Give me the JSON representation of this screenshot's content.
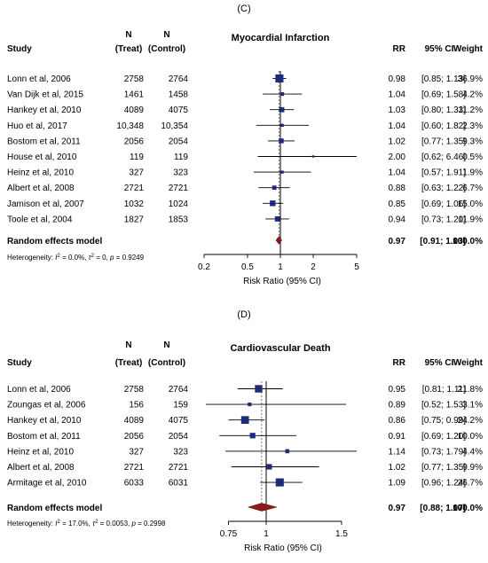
{
  "chart_data": [
    {
      "type": "forest",
      "panel_label": "(C)",
      "title": "Myocardial Infarction",
      "headers": {
        "study": "Study",
        "n_treat": [
          "N",
          "(Treat)"
        ],
        "n_control": [
          "N",
          "(Control)"
        ],
        "rr": "RR",
        "ci": "95% CI",
        "weight": "Weight"
      },
      "rows": [
        {
          "study": "Lonn et al, 2006",
          "n_treat": "2758",
          "n_control": "2764",
          "rr": 0.98,
          "lo": 0.85,
          "hi": 1.13,
          "rr_text": "0.98",
          "ci_text": "[0.85; 1.13]",
          "weight_text": "36.9%",
          "weight": 36.9
        },
        {
          "study": "Van Dijk et al, 2015",
          "n_treat": "1461",
          "n_control": "1458",
          "rr": 1.04,
          "lo": 0.69,
          "hi": 1.58,
          "rr_text": "1.04",
          "ci_text": "[0.69; 1.58]",
          "weight_text": "4.2%",
          "weight": 4.2
        },
        {
          "study": "Hankey et al, 2010",
          "n_treat": "4089",
          "n_control": "4075",
          "rr": 1.03,
          "lo": 0.8,
          "hi": 1.33,
          "rr_text": "1.03",
          "ci_text": "[0.80; 1.33]",
          "weight_text": "11.2%",
          "weight": 11.2
        },
        {
          "study": "Huo et al, 2017",
          "n_treat": "10,348",
          "n_control": "10,354",
          "rr": 1.04,
          "lo": 0.6,
          "hi": 1.82,
          "rr_text": "1.04",
          "ci_text": "[0.60; 1.82]",
          "weight_text": "2.3%",
          "weight": 2.3
        },
        {
          "study": "Bostom et al, 2011",
          "n_treat": "2056",
          "n_control": "2054",
          "rr": 1.02,
          "lo": 0.77,
          "hi": 1.35,
          "rr_text": "1.02",
          "ci_text": "[0.77; 1.35]",
          "weight_text": "9.3%",
          "weight": 9.3
        },
        {
          "study": "House et al, 2010",
          "n_treat": "119",
          "n_control": "119",
          "rr": 2.0,
          "lo": 0.62,
          "hi": 6.46,
          "rr_text": "2.00",
          "ci_text": "[0.62; 6.46]",
          "weight_text": "0.5%",
          "weight": 0.5
        },
        {
          "study": "Heinz et al, 2010",
          "n_treat": "327",
          "n_control": "323",
          "rr": 1.04,
          "lo": 0.57,
          "hi": 1.91,
          "rr_text": "1.04",
          "ci_text": "[0.57; 1.91]",
          "weight_text": "1.9%",
          "weight": 1.9
        },
        {
          "study": "Albert et al, 2008",
          "n_treat": "2721",
          "n_control": "2721",
          "rr": 0.88,
          "lo": 0.63,
          "hi": 1.22,
          "rr_text": "0.88",
          "ci_text": "[0.63; 1.22]",
          "weight_text": "6.7%",
          "weight": 6.7
        },
        {
          "study": "Jamison et al, 2007",
          "n_treat": "1032",
          "n_control": "1024",
          "rr": 0.85,
          "lo": 0.69,
          "hi": 1.06,
          "rr_text": "0.85",
          "ci_text": "[0.69; 1.06]",
          "weight_text": "15.0%",
          "weight": 15.0
        },
        {
          "study": "Toole et al, 2004",
          "n_treat": "1827",
          "n_control": "1853",
          "rr": 0.94,
          "lo": 0.73,
          "hi": 1.2,
          "rr_text": "0.94",
          "ci_text": "[0.73; 1.20]",
          "weight_text": "11.9%",
          "weight": 11.9
        }
      ],
      "summary": {
        "label": "Random effects model",
        "rr": 0.97,
        "lo": 0.91,
        "hi": 1.03,
        "rr_text": "0.97",
        "ci_text": "[0.91; 1.03]",
        "weight_text": "100.0%"
      },
      "heterogeneity": {
        "prefix": "Heterogeneity: ",
        "i2": "I",
        "i2_val": " = 0.0%, ",
        "tau2": "τ",
        "tau2_val": " = 0, ",
        "p": "p",
        "p_val": " = 0.9249"
      },
      "x_scale": "log",
      "xlim": [
        0.2,
        5
      ],
      "xticks": [
        0.2,
        0.5,
        1,
        2,
        5
      ],
      "xtick_labels": [
        "0.2",
        "0.5",
        "1",
        "2",
        "5"
      ],
      "xlabel": "Risk Ratio (95% CI)",
      "colors": {
        "square": "#1f2a78",
        "diamond": "#8b1a1a",
        "line": "#000000",
        "dotted": "#555555"
      }
    },
    {
      "type": "forest",
      "panel_label": "(D)",
      "title": "Cardiovascular Death",
      "headers": {
        "study": "Study",
        "n_treat": [
          "N",
          "(Treat)"
        ],
        "n_control": [
          "N",
          "(Control)"
        ],
        "rr": "RR",
        "ci": "95% CI",
        "weight": "Weight"
      },
      "rows": [
        {
          "study": "Lonn et al, 2006",
          "n_treat": "2758",
          "n_control": "2764",
          "rr": 0.95,
          "lo": 0.81,
          "hi": 1.11,
          "rr_text": "0.95",
          "ci_text": "[0.81; 1.11]",
          "weight_text": "21.8%",
          "weight": 21.8
        },
        {
          "study": "Zoungas et al, 2006",
          "n_treat": "156",
          "n_control": "159",
          "rr": 0.89,
          "lo": 0.52,
          "hi": 1.53,
          "rr_text": "0.89",
          "ci_text": "[0.52; 1.53]",
          "weight_text": "3.1%",
          "weight": 3.1
        },
        {
          "study": "Hankey et al, 2010",
          "n_treat": "4089",
          "n_control": "4075",
          "rr": 0.86,
          "lo": 0.75,
          "hi": 0.99,
          "rr_text": "0.86",
          "ci_text": "[0.75; 0.99]",
          "weight_text": "24.2%",
          "weight": 24.2
        },
        {
          "study": "Bostom et al, 2011",
          "n_treat": "2056",
          "n_control": "2054",
          "rr": 0.91,
          "lo": 0.69,
          "hi": 1.2,
          "rr_text": "0.91",
          "ci_text": "[0.69; 1.20]",
          "weight_text": "10.0%",
          "weight": 10.0
        },
        {
          "study": "Heinz et al, 2010",
          "n_treat": "327",
          "n_control": "323",
          "rr": 1.14,
          "lo": 0.73,
          "hi": 1.79,
          "rr_text": "1.14",
          "ci_text": "[0.73; 1.79]",
          "weight_text": "4.4%",
          "weight": 4.4
        },
        {
          "study": "Albert et al, 2008",
          "n_treat": "2721",
          "n_control": "2721",
          "rr": 1.02,
          "lo": 0.77,
          "hi": 1.35,
          "rr_text": "1.02",
          "ci_text": "[0.77; 1.35]",
          "weight_text": "9.9%",
          "weight": 9.9
        },
        {
          "study": "Armitage et al, 2010",
          "n_treat": "6033",
          "n_control": "6031",
          "rr": 1.09,
          "lo": 0.96,
          "hi": 1.24,
          "rr_text": "1.09",
          "ci_text": "[0.96; 1.24]",
          "weight_text": "26.7%",
          "weight": 26.7
        }
      ],
      "summary": {
        "label": "Random effects model",
        "rr": 0.97,
        "lo": 0.88,
        "hi": 1.07,
        "rr_text": "0.97",
        "ci_text": "[0.88; 1.07]",
        "weight_text": "100.0%"
      },
      "heterogeneity": {
        "prefix": "Heterogeneity: ",
        "i2": "I",
        "i2_val": " = 17.0%, ",
        "tau2": "τ",
        "tau2_val": " = 0.0053, ",
        "p": "p",
        "p_val": " = 0.2998"
      },
      "x_scale": "linear",
      "xlim": [
        0.6,
        1.6
      ],
      "xticks": [
        0.75,
        1,
        1.5
      ],
      "xtick_labels": [
        "0.75",
        "1",
        "1.5"
      ],
      "xlabel": "Risk Ratio (95% CI)",
      "colors": {
        "square": "#1f2a78",
        "diamond": "#8b1a1a",
        "line": "#000000",
        "dotted": "#555555"
      }
    }
  ]
}
